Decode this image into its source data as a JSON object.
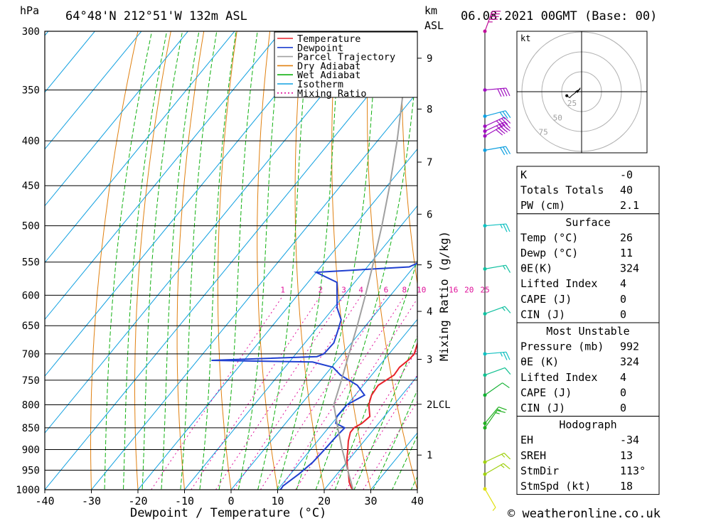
{
  "header": {
    "hpa_unit": "hPa",
    "location": "64°48'N  212°51'W  132m  ASL",
    "km_unit": "km",
    "asl_unit": "ASL",
    "date": "06.08.2021  00GMT  (Base: 00)"
  },
  "footer": {
    "credit": "© weatheronline.co.uk"
  },
  "colors": {
    "temperature": "#e8212a",
    "dewpoint": "#2040d0",
    "parcel": "#a0a0a0",
    "dry_adiabat": "#e08010",
    "wet_adiabat": "#10b010",
    "isotherm": "#10a0e0",
    "mixing_ratio": "#e0109a"
  },
  "chart_data": [
    {
      "type": "line",
      "subtype": "skew-T log-P sounding",
      "xlabel": "Dewpoint / Temperature (°C)",
      "ylabel": "",
      "mixing_axis_label": "Mixing Ratio (g/kg)",
      "xlim": [
        -40,
        40
      ],
      "ylim_hpa": [
        1000,
        300
      ],
      "y_scale": "log-pressure",
      "x_ticks": [
        "-40",
        "-30",
        "-20",
        "-10",
        "0",
        "10",
        "20",
        "30",
        "40"
      ],
      "pressure_levels": [
        300,
        350,
        400,
        450,
        500,
        550,
        600,
        650,
        700,
        750,
        800,
        850,
        900,
        950,
        1000
      ],
      "height_ticks_km": [
        {
          "label": "1",
          "p": 913
        },
        {
          "label": "2LCL",
          "p": 799
        },
        {
          "label": "3",
          "p": 710
        },
        {
          "label": "4",
          "p": 626
        },
        {
          "label": "5",
          "p": 554
        },
        {
          "label": "6",
          "p": 485
        },
        {
          "label": "7",
          "p": 423
        },
        {
          "label": "8",
          "p": 368
        },
        {
          "label": "9",
          "p": 322
        }
      ],
      "mixing_ratio_labels": [
        "1",
        "2",
        "3",
        "4",
        "6",
        "8",
        "10",
        "16",
        "20",
        "25"
      ],
      "legend": {
        "position": "top-right",
        "entries": [
          "Temperature",
          "Dewpoint",
          "Parcel Trajectory",
          "Dry Adiabat",
          "Wet Adiabat",
          "Isotherm",
          "Mixing Ratio"
        ]
      },
      "series": [
        {
          "name": "Temperature",
          "points_p_t": [
            [
              1000,
              26.2
            ],
            [
              995,
              25.5
            ],
            [
              980,
              24.0
            ],
            [
              960,
              22.5
            ],
            [
              940,
              20.8
            ],
            [
              920,
              19.3
            ],
            [
              900,
              18.0
            ],
            [
              880,
              16.6
            ],
            [
              860,
              15.5
            ],
            [
              850,
              15.5
            ],
            [
              840,
              16.4
            ],
            [
              825,
              16.9
            ],
            [
              800,
              14.6
            ],
            [
              780,
              13.5
            ],
            [
              760,
              13.2
            ],
            [
              740,
              14.8
            ],
            [
              725,
              14.6
            ],
            [
              710,
              15.3
            ],
            [
              700,
              15.4
            ],
            [
              680,
              14.2
            ],
            [
              660,
              12.6
            ],
            [
              640,
              12.2
            ],
            [
              620,
              11.2
            ],
            [
              600,
              10.3
            ],
            [
              580,
              8.6
            ],
            [
              560,
              6.4
            ],
            [
              540,
              4.2
            ],
            [
              520,
              1.9
            ],
            [
              500,
              -0.5
            ],
            [
              480,
              -3.0
            ],
            [
              460,
              -5.5
            ],
            [
              440,
              -8.3
            ],
            [
              420,
              -11.4
            ],
            [
              400,
              -14.7
            ],
            [
              390,
              -15.7
            ],
            [
              380,
              -17.4
            ],
            [
              360,
              -21.1
            ],
            [
              350,
              -23.8
            ],
            [
              340,
              -24.4
            ],
            [
              330,
              -26.6
            ],
            [
              320,
              -29.7
            ],
            [
              300,
              -34.7
            ]
          ]
        },
        {
          "name": "Dewpoint",
          "points_p_t": [
            [
              1000,
              10.6
            ],
            [
              990,
              10.5
            ],
            [
              960,
              11.8
            ],
            [
              930,
              12.7
            ],
            [
              900,
              13.0
            ],
            [
              870,
              13.2
            ],
            [
              850,
              13.5
            ],
            [
              840,
              10.8
            ],
            [
              825,
              9.8
            ],
            [
              800,
              9.9
            ],
            [
              780,
              12.0
            ],
            [
              760,
              8.7
            ],
            [
              740,
              3.3
            ],
            [
              725,
              0.3
            ],
            [
              715,
              -5.0
            ],
            [
              712,
              -27.0
            ],
            [
              705,
              -5.0
            ],
            [
              700,
              -4.0
            ],
            [
              680,
              -3.8
            ],
            [
              660,
              -5.0
            ],
            [
              640,
              -6.3
            ],
            [
              620,
              -9.3
            ],
            [
              600,
              -11.5
            ],
            [
              580,
              -13.8
            ],
            [
              565,
              -20.0
            ],
            [
              557,
              -1.0
            ],
            [
              548,
              0.8
            ],
            [
              530,
              0.9
            ],
            [
              510,
              0.5
            ],
            [
              500,
              -0.5
            ],
            [
              480,
              -3.6
            ],
            [
              460,
              -7.0
            ],
            [
              445,
              -9.5
            ],
            [
              430,
              -9.5
            ],
            [
              415,
              -10.8
            ],
            [
              400,
              -10.8
            ],
            [
              390,
              -14.5
            ],
            [
              370,
              -19.0
            ],
            [
              355,
              -23.5
            ],
            [
              345,
              -22.5
            ],
            [
              340,
              -22.6
            ],
            [
              335,
              -35.5
            ],
            [
              320,
              -37.0
            ],
            [
              305,
              -37.5
            ],
            [
              300,
              -41.0
            ]
          ]
        },
        {
          "name": "Parcel Trajectory",
          "points_p_t": [
            [
              1000,
              26.2
            ],
            [
              950,
              21.6
            ],
            [
              900,
              16.8
            ],
            [
              850,
              12.0
            ],
            [
              800,
              7.1
            ],
            [
              750,
              4.4
            ],
            [
              700,
              1.4
            ],
            [
              650,
              -1.8
            ],
            [
              600,
              -5.4
            ],
            [
              550,
              -9.5
            ],
            [
              500,
              -14.1
            ],
            [
              450,
              -19.5
            ],
            [
              400,
              -25.8
            ],
            [
              350,
              -33.4
            ],
            [
              300,
              -42.7
            ]
          ]
        }
      ]
    },
    {
      "type": "scatter",
      "subtype": "hodograph",
      "unit_label": "kt",
      "ring_labels": [
        "25",
        "50",
        "75"
      ],
      "points_kt": [
        [
          -1.5,
          4.8
        ],
        [
          -3.3,
          2.4
        ],
        [
          -4.8,
          -0.9
        ],
        [
          -7.5,
          0.3
        ],
        [
          -1.8,
          3.3
        ],
        [
          -12.6,
          -5.0
        ],
        [
          -15.0,
          -7.5
        ],
        [
          -18.6,
          -5.0
        ]
      ]
    },
    {
      "type": "table",
      "rows": [
        {
          "label": "K",
          "value": "-0"
        },
        {
          "label": "Totals Totals",
          "value": "40"
        },
        {
          "label": "PW (cm)",
          "value": "2.1"
        }
      ]
    },
    {
      "type": "table",
      "title": "Surface",
      "rows": [
        {
          "label": "Temp (°C)",
          "value": "26"
        },
        {
          "label": "Dewp (°C)",
          "value": "11"
        },
        {
          "label": "θE(K)",
          "value": "324"
        },
        {
          "label": "Lifted Index",
          "value": "4"
        },
        {
          "label": "CAPE (J)",
          "value": "0"
        },
        {
          "label": "CIN (J)",
          "value": "0"
        }
      ]
    },
    {
      "type": "table",
      "title": "Most Unstable",
      "rows": [
        {
          "label": "Pressure (mb)",
          "value": "992"
        },
        {
          "label": "θE (K)",
          "value": "324"
        },
        {
          "label": "Lifted Index",
          "value": "4"
        },
        {
          "label": "CAPE (J)",
          "value": "0"
        },
        {
          "label": "CIN (J)",
          "value": "0"
        }
      ]
    },
    {
      "type": "table",
      "title": "Hodograph",
      "rows": [
        {
          "label": "EH",
          "value": "-34"
        },
        {
          "label": "SREH",
          "value": "13"
        },
        {
          "label": "StmDir",
          "value": "113°"
        },
        {
          "label": "StmSpd (kt)",
          "value": "18"
        }
      ]
    }
  ],
  "wind_profile": {
    "levels": [
      {
        "p": 300,
        "dir": 200,
        "spd": 45,
        "color": "#c0109a"
      },
      {
        "p": 350,
        "dir": 265,
        "spd": 40,
        "color": "#a010c0"
      },
      {
        "p": 375,
        "dir": 255,
        "spd": 30,
        "color": "#10a0e0"
      },
      {
        "p": 385,
        "dir": 245,
        "spd": 40,
        "color": "#a010c0"
      },
      {
        "p": 390,
        "dir": 245,
        "spd": 40,
        "color": "#a010c0"
      },
      {
        "p": 395,
        "dir": 240,
        "spd": 40,
        "color": "#a010c0"
      },
      {
        "p": 410,
        "dir": 260,
        "spd": 30,
        "color": "#10a0e0"
      },
      {
        "p": 500,
        "dir": 265,
        "spd": 25,
        "color": "#10c0c0"
      },
      {
        "p": 560,
        "dir": 260,
        "spd": 15,
        "color": "#10c0a0"
      },
      {
        "p": 630,
        "dir": 250,
        "spd": 15,
        "color": "#10c0a0"
      },
      {
        "p": 700,
        "dir": 265,
        "spd": 25,
        "color": "#10c0c0"
      },
      {
        "p": 740,
        "dir": 250,
        "spd": 10,
        "color": "#10c090"
      },
      {
        "p": 780,
        "dir": 235,
        "spd": 10,
        "color": "#10b030"
      },
      {
        "p": 840,
        "dir": 220,
        "spd": 15,
        "color": "#20b020"
      },
      {
        "p": 850,
        "dir": 215,
        "spd": 15,
        "color": "#20b020"
      },
      {
        "p": 930,
        "dir": 245,
        "spd": 15,
        "color": "#a0d010"
      },
      {
        "p": 960,
        "dir": 240,
        "spd": 15,
        "color": "#a0d010"
      },
      {
        "p": 998,
        "dir": 330,
        "spd": 5,
        "color": "#e0e010"
      }
    ]
  }
}
